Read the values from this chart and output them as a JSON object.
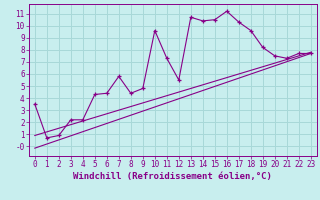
{
  "xlabel": "Windchill (Refroidissement éolien,°C)",
  "bg_color": "#c8eeee",
  "grid_color": "#a8d8d8",
  "line_color": "#880088",
  "xlim": [
    -0.5,
    23.5
  ],
  "ylim": [
    -0.8,
    11.8
  ],
  "xticks": [
    0,
    1,
    2,
    3,
    4,
    5,
    6,
    7,
    8,
    9,
    10,
    11,
    12,
    13,
    14,
    15,
    16,
    17,
    18,
    19,
    20,
    21,
    22,
    23
  ],
  "yticks": [
    0,
    1,
    2,
    3,
    4,
    5,
    6,
    7,
    8,
    9,
    10,
    11
  ],
  "main_x": [
    0,
    1,
    2,
    3,
    4,
    5,
    6,
    7,
    8,
    9,
    10,
    11,
    12,
    13,
    14,
    15,
    16,
    17,
    18,
    19,
    20,
    21,
    22,
    23
  ],
  "main_y": [
    3.5,
    0.7,
    0.9,
    2.2,
    2.2,
    4.3,
    4.4,
    5.8,
    4.4,
    4.8,
    9.6,
    7.3,
    5.5,
    10.7,
    10.4,
    10.5,
    11.2,
    10.3,
    9.6,
    8.2,
    7.5,
    7.3,
    7.7,
    7.7
  ],
  "line1_x": [
    0,
    23
  ],
  "line1_y": [
    0.9,
    7.8
  ],
  "line2_x": [
    0,
    23
  ],
  "line2_y": [
    -0.15,
    7.7
  ],
  "font_size_label": 6.5,
  "font_size_tick": 5.5
}
